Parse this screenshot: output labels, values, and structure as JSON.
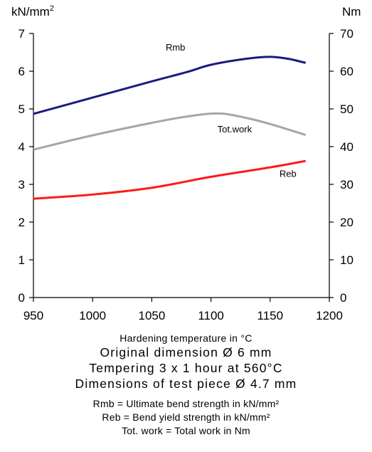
{
  "chart_data": {
    "type": "line",
    "x_axis": {
      "range": [
        950,
        1200
      ],
      "ticks": [
        950,
        1000,
        1050,
        1100,
        1150,
        1200
      ],
      "label": "Hardening temperature in °C"
    },
    "y_axis_left": {
      "unit": "kN/mm",
      "unit_superscript": "2",
      "range": [
        0,
        7
      ],
      "ticks": [
        0,
        1,
        2,
        3,
        4,
        5,
        6,
        7
      ]
    },
    "y_axis_right": {
      "unit": "Nm",
      "range": [
        0,
        70
      ],
      "ticks": [
        0,
        10,
        20,
        30,
        40,
        50,
        60,
        70
      ]
    },
    "grid": false,
    "series": [
      {
        "name": "Rmb",
        "axis": "left",
        "color": "#1b1b7e",
        "x": [
          950,
          1000,
          1050,
          1080,
          1100,
          1130,
          1150,
          1165,
          1180
        ],
        "y": [
          4.87,
          5.3,
          5.73,
          5.98,
          6.17,
          6.33,
          6.38,
          6.33,
          6.22
        ]
      },
      {
        "name": "Tot.work",
        "axis": "right",
        "color": "#a6a6a6",
        "x": [
          950,
          1000,
          1050,
          1080,
          1107,
          1130,
          1150,
          1180
        ],
        "y": [
          39.2,
          43.0,
          46.3,
          48.0,
          48.8,
          47.6,
          46.0,
          43.1
        ]
      },
      {
        "name": "Reb",
        "axis": "left",
        "color": "#ff1a1a",
        "x": [
          950,
          1000,
          1050,
          1100,
          1150,
          1180
        ],
        "y": [
          2.62,
          2.73,
          2.91,
          3.2,
          3.45,
          3.62
        ]
      }
    ]
  },
  "captions": {
    "x_label": "Hardening temperature in °C",
    "original_dimension": "Original dimension Ø 6 mm",
    "tempering": "Tempering 3 x 1 hour at 560°C",
    "test_piece": "Dimensions of test piece Ø 4.7 mm",
    "legend_rmb": "Rmb = Ultimate bend strength in kN/mm²",
    "legend_reb": "Reb =   Bend yield strength in kN/mm²",
    "legend_totwork": "Tot. work = Total work in Nm"
  }
}
